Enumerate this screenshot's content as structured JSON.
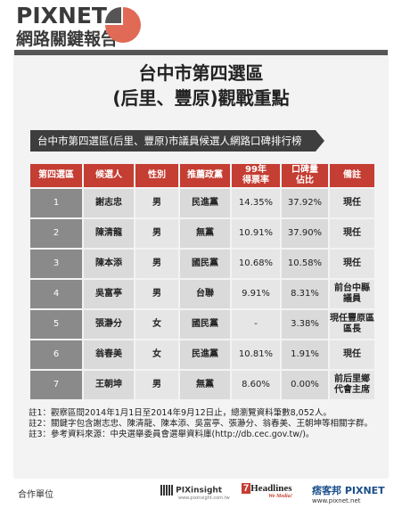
{
  "header": {
    "brand": "PIXNET",
    "subtitle": "網路關鍵報告",
    "pie_colors": [
      "#e06a56",
      "#555555"
    ]
  },
  "title": {
    "line1": "台中市第四選區",
    "line2": "(后里、豐原)觀戰重點"
  },
  "ribbon": "台中市第四選區(后里、豐原)市議員候選人網路口碑排行榜",
  "chart_data": {
    "type": "table",
    "columns": [
      "第四選區",
      "候選人",
      "性別",
      "推薦政黨",
      "99年\n得票率",
      "口碑量\n佔比",
      "備註"
    ],
    "rows": [
      [
        "1",
        "謝志忠",
        "男",
        "民進黨",
        "14.35%",
        "37.92%",
        "現任"
      ],
      [
        "2",
        "陳清龍",
        "男",
        "無黨",
        "10.91%",
        "37.90%",
        "現任"
      ],
      [
        "3",
        "陳本添",
        "男",
        "國民黨",
        "10.68%",
        "10.58%",
        "現任"
      ],
      [
        "4",
        "吳富亭",
        "男",
        "台聯",
        "9.91%",
        "8.31%",
        "前台中縣\n議員"
      ],
      [
        "5",
        "張瀞分",
        "女",
        "國民黨",
        "-",
        "3.38%",
        "現任豐原區\n區長"
      ],
      [
        "6",
        "翁春美",
        "女",
        "民進黨",
        "10.81%",
        "1.91%",
        "現任"
      ],
      [
        "7",
        "王朝坤",
        "男",
        "無黨",
        "8.60%",
        "0.00%",
        "前后里鄉\n代會主席"
      ]
    ],
    "colors": {
      "header": "#c43e33",
      "index": "#8a8a8a"
    }
  },
  "notes": [
    {
      "key": "註1：",
      "text": "觀察區間2014年1月1日至2014年9月12日止，總瀏覽資料筆數8,052人。"
    },
    {
      "key": "註2：",
      "text": "關鍵字包含謝志忠、陳清龍、陳本添、吳富亭、張瀞分、翁春美、王朝坤等相關字群。"
    },
    {
      "key": "註3：",
      "text": "參考資料來源：中央選舉委員會選舉資料庫(http://db.cec.gov.tw/)。"
    }
  ],
  "footer": {
    "coop": "合作單位",
    "pix": "PIXinsight",
    "pix_sub": "www.pixinsight.com.tw",
    "headlines_num": "7",
    "headlines": "Headlines",
    "headlines_tag": "We Media!",
    "pixnet_cn": "痞客邦 PIXNET",
    "pixnet_url": "www.pixnet.net"
  }
}
